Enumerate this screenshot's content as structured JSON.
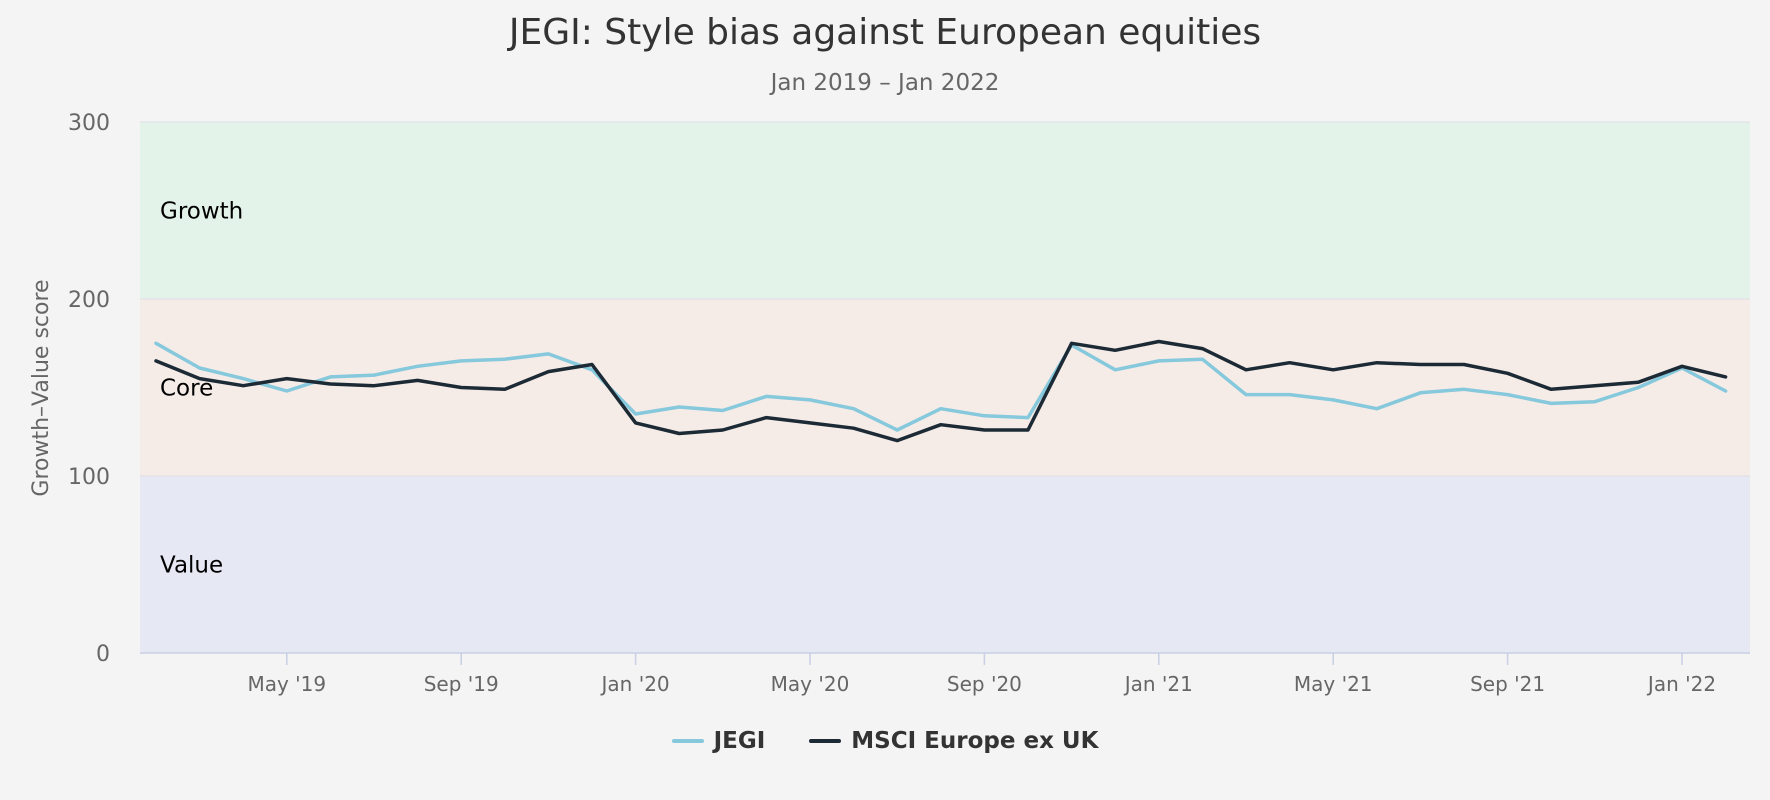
{
  "chart_data": {
    "type": "line",
    "title": "JEGI: Style bias against European equities",
    "subtitle": "Jan 2019 – Jan 2022",
    "ylabel": "Growth–Value score",
    "xlabel": "",
    "ylim": [
      0,
      300
    ],
    "yticks": [
      0,
      100,
      200,
      300
    ],
    "grid": true,
    "legend_position": "bottom",
    "x_tick_labels": [
      "May '19",
      "Sep '19",
      "Jan '20",
      "May '20",
      "Sep '20",
      "Jan '21",
      "May '21",
      "Sep '21",
      "Jan '22"
    ],
    "x_tick_index": [
      3,
      7,
      11,
      15,
      19,
      23,
      27,
      31,
      35
    ],
    "x": [
      "Feb 2019",
      "Mar 2019",
      "Apr 2019",
      "May 2019",
      "Jun 2019",
      "Jul 2019",
      "Aug 2019",
      "Sep 2019",
      "Oct 2019",
      "Nov 2019",
      "Dec 2019",
      "Jan 2020",
      "Feb 2020",
      "Mar 2020",
      "Apr 2020",
      "May 2020",
      "Jun 2020",
      "Jul 2020",
      "Aug 2020",
      "Sep 2020",
      "Oct 2020",
      "Nov 2020",
      "Dec 2020",
      "Jan 2021",
      "Feb 2021",
      "Mar 2021",
      "Apr 2021",
      "May 2021",
      "Jun 2021",
      "Jul 2021",
      "Aug 2021",
      "Sep 2021",
      "Oct 2021",
      "Nov 2021",
      "Dec 2021",
      "Jan 2022",
      "Feb 2022"
    ],
    "bands": [
      {
        "label": "Growth",
        "from": 200,
        "to": 300,
        "color": "#e4f3ea"
      },
      {
        "label": "Core",
        "from": 100,
        "to": 200,
        "color": "#f6ece7"
      },
      {
        "label": "Value",
        "from": 0,
        "to": 100,
        "color": "#e6e9f3"
      }
    ],
    "series": [
      {
        "name": "JEGI",
        "color": "#86c8dc",
        "values": [
          175,
          161,
          155,
          148,
          156,
          157,
          162,
          165,
          166,
          169,
          160,
          135,
          139,
          137,
          145,
          143,
          138,
          126,
          138,
          134,
          133,
          174,
          160,
          165,
          166,
          146,
          146,
          143,
          138,
          147,
          149,
          146,
          141,
          142,
          150,
          161,
          148
        ]
      },
      {
        "name": "MSCI Europe ex UK",
        "color": "#1c2a36",
        "values": [
          165,
          155,
          151,
          155,
          152,
          151,
          154,
          150,
          149,
          159,
          163,
          130,
          124,
          126,
          133,
          130,
          127,
          120,
          129,
          126,
          126,
          175,
          171,
          176,
          172,
          160,
          164,
          160,
          164,
          163,
          163,
          158,
          149,
          151,
          153,
          162,
          156
        ]
      }
    ]
  }
}
